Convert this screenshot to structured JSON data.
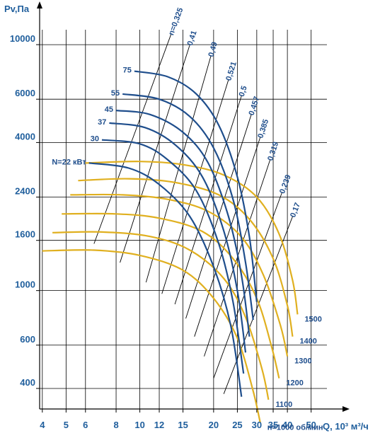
{
  "chart_data": {
    "type": "line",
    "xlabel": "Q, 10³ м³/ч",
    "ylabel": "Pv,Па",
    "x_ticks": [
      4,
      5,
      6,
      8,
      10,
      12,
      15,
      20,
      25,
      30,
      35,
      40,
      50
    ],
    "x_tick_labels": [
      "4",
      "5",
      "6",
      "8",
      "10",
      "12",
      "15",
      "20",
      "25",
      "30",
      "35",
      "40",
      "50"
    ],
    "y_ticks": [
      400,
      600,
      1000,
      1600,
      2400,
      4000,
      6000,
      10000
    ],
    "y_tick_labels": [
      "400",
      "600",
      "1000",
      "1600",
      "2400",
      "4000",
      "6000",
      "10000"
    ],
    "x_scale": "log",
    "y_scale": "log",
    "grid": true,
    "efficiency_lines": [
      {
        "label": "n=0,325",
        "x": [
          6.5,
          13.4
        ],
        "y": [
          1550,
          11000
        ]
      },
      {
        "label": "0,41",
        "x": [
          8.3,
          16.0
        ],
        "y": [
          1300,
          10000
        ]
      },
      {
        "label": "0,49",
        "x": [
          10.6,
          19.5
        ],
        "y": [
          1080,
          9000
        ]
      },
      {
        "label": "0,521",
        "x": [
          12.3,
          23.0
        ],
        "y": [
          970,
          7200
        ]
      },
      {
        "label": "0,5",
        "x": [
          13.9,
          26.0
        ],
        "y": [
          880,
          6200
        ]
      },
      {
        "label": "0,457",
        "x": [
          15.4,
          28.5
        ],
        "y": [
          770,
          5200
        ]
      },
      {
        "label": "0,385",
        "x": [
          16.7,
          31.0
        ],
        "y": [
          650,
          4200
        ]
      },
      {
        "label": "0,319",
        "x": [
          18.3,
          34.0
        ],
        "y": [
          540,
          3400
        ]
      },
      {
        "label": "0,239",
        "x": [
          20.0,
          38.0
        ],
        "y": [
          440,
          2500
        ]
      },
      {
        "label": "0,17",
        "x": [
          22.0,
          42.0
        ],
        "y": [
          380,
          2000
        ]
      }
    ],
    "power_labels": [
      "75",
      "55",
      "45",
      "37",
      "30",
      "N=22 кВт"
    ],
    "power_curves": [
      {
        "name": "75",
        "x": [
          9.5,
          13.0,
          17.0,
          21.0,
          25.0,
          28.0,
          30.0
        ],
        "y": [
          7800,
          7400,
          6300,
          4700,
          2900,
          1650,
          900
        ]
      },
      {
        "name": "55",
        "x": [
          8.5,
          12.0,
          16.0,
          20.0,
          24.0,
          27.0,
          29.0
        ],
        "y": [
          6300,
          6000,
          5100,
          3800,
          2350,
          1300,
          760
        ]
      },
      {
        "name": "45",
        "x": [
          8.0,
          11.0,
          15.0,
          19.0,
          23.0,
          26.0,
          28.0
        ],
        "y": [
          5400,
          5200,
          4400,
          3300,
          2000,
          1150,
          650
        ]
      },
      {
        "name": "37",
        "x": [
          7.5,
          10.5,
          14.0,
          18.0,
          22.0,
          25.0,
          27.0
        ],
        "y": [
          4800,
          4600,
          3900,
          2900,
          1750,
          1000,
          560
        ]
      },
      {
        "name": "30",
        "x": [
          7.0,
          10.0,
          13.0,
          17.0,
          21.0,
          24.0,
          26.5
        ],
        "y": [
          4100,
          3950,
          3400,
          2550,
          1550,
          900,
          460
        ]
      },
      {
        "name": "N=22 кВт",
        "x": [
          6.2,
          9.0,
          12.0,
          16.0,
          20.0,
          23.5,
          26.0
        ],
        "y": [
          3300,
          3150,
          2700,
          2000,
          1250,
          720,
          370
        ]
      }
    ],
    "rpm_labels": [
      "1500",
      "1400",
      "1300",
      "1200",
      "1100",
      "n=1000 об/мин"
    ],
    "rpm_curves": [
      {
        "name": "1500",
        "x": [
          6.0,
          10.0,
          15.0,
          22.0,
          30.0,
          37.0,
          42.0,
          44.0
        ],
        "y": [
          3300,
          3350,
          3250,
          2950,
          2400,
          1700,
          1100,
          800
        ]
      },
      {
        "name": "1400",
        "x": [
          5.6,
          9.0,
          14.0,
          21.0,
          28.0,
          35.0,
          40.0,
          42.0
        ],
        "y": [
          2800,
          2850,
          2750,
          2450,
          1950,
          1350,
          870,
          650
        ]
      },
      {
        "name": "1300",
        "x": [
          5.2,
          8.5,
          13.0,
          19.0,
          26.0,
          32.0,
          37.5,
          40.0
        ],
        "y": [
          2450,
          2450,
          2350,
          2100,
          1650,
          1150,
          720,
          540
        ]
      },
      {
        "name": "1200",
        "x": [
          4.8,
          8.0,
          12.0,
          18.0,
          24.0,
          30.0,
          34.5,
          37.0
        ],
        "y": [
          2050,
          2050,
          1970,
          1740,
          1350,
          930,
          590,
          440
        ]
      },
      {
        "name": "1100",
        "x": [
          4.4,
          7.0,
          11.0,
          16.0,
          22.0,
          27.0,
          31.5,
          33.5
        ],
        "y": [
          1720,
          1730,
          1660,
          1460,
          1120,
          780,
          480,
          360
        ]
      },
      {
        "name": "n=1000 об/мин",
        "x": [
          4.0,
          6.5,
          10.0,
          15.0,
          20.0,
          25.0,
          29.0,
          31.0
        ],
        "y": [
          1450,
          1460,
          1390,
          1210,
          930,
          640,
          390,
          290
        ]
      }
    ],
    "colors": {
      "axis": "#000000",
      "grid": "#000000",
      "power_curve": "#1f4e8c",
      "rpm_curve": "#e0b020",
      "label": "#1f5e9c"
    }
  }
}
